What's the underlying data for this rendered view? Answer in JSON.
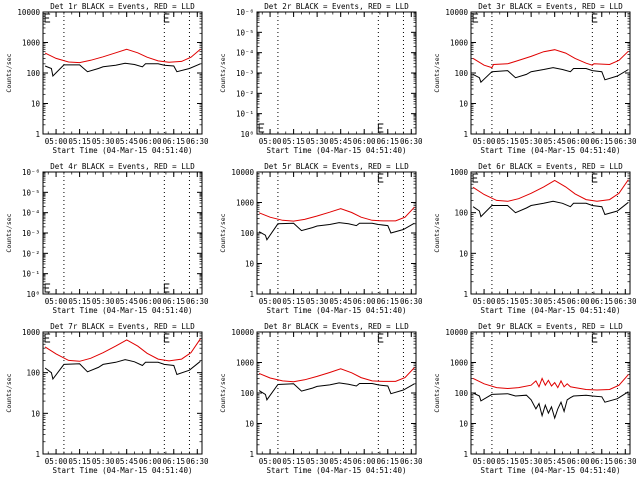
{
  "colors": {
    "events": "#000000",
    "lld": "#e00000",
    "axes": "#000000",
    "background": "#ffffff"
  },
  "chart_data": [
    {
      "type": "line",
      "title": "Det 1r BLACK = Events, RED = LLD",
      "xlabel": "Start Time (04-Mar-15 04:51:40)",
      "ylabel": "Counts/sec",
      "yscale": "log",
      "ylim": [
        1,
        10000
      ],
      "x_ticks": [
        "05:00",
        "05:15",
        "05:30",
        "05:45",
        "06:00",
        "06:15",
        "06:30"
      ],
      "y_ticks": [
        "1",
        "10",
        "100",
        "1000",
        "10000"
      ],
      "markers": [
        "05:05",
        "06:09",
        "06:25"
      ],
      "flags": [
        {
          "x": "04:53",
          "y": 11000
        },
        {
          "x": "06:09",
          "y": 11000
        }
      ],
      "series": [
        {
          "name": "Events",
          "x": [
            "04:53",
            "04:57",
            "04:58",
            "05:05",
            "05:15",
            "05:20",
            "05:27",
            "05:30",
            "05:38",
            "05:44",
            "05:50",
            "05:55",
            "05:57",
            "06:05",
            "06:09",
            "06:15",
            "06:17",
            "06:25",
            "06:32"
          ],
          "y": [
            170,
            140,
            80,
            185,
            185,
            110,
            140,
            160,
            180,
            210,
            190,
            160,
            200,
            200,
            180,
            170,
            110,
            140,
            200
          ]
        },
        {
          "name": "LLD",
          "x": [
            "04:53",
            "05:00",
            "05:08",
            "05:15",
            "05:22",
            "05:30",
            "05:38",
            "05:45",
            "05:52",
            "05:58",
            "06:05",
            "06:12",
            "06:20",
            "06:26",
            "06:32"
          ],
          "y": [
            450,
            300,
            230,
            220,
            260,
            340,
            460,
            600,
            460,
            330,
            250,
            225,
            240,
            330,
            600
          ]
        }
      ]
    },
    {
      "type": "line",
      "title": "Det 2r BLACK = Events, RED = LLD",
      "xlabel": "Start Time (04-Mar-15 04:51:40)",
      "ylabel": "Counts/sec",
      "yscale": "log",
      "ylim": [
        1,
        1000000
      ],
      "x_ticks": [
        "05:00",
        "05:15",
        "05:30",
        "05:45",
        "06:00",
        "06:15",
        "06:30"
      ],
      "y_ticks": [
        "10⁰",
        "10⁻¹",
        "10⁻²",
        "10⁻³",
        "10⁻⁴",
        "10⁻⁵",
        "10⁻⁶"
      ],
      "markers": [
        "05:05",
        "06:09",
        "06:25"
      ],
      "flags": [
        {
          "x": "04:53",
          "y": 3
        },
        {
          "x": "06:09",
          "y": 3
        }
      ],
      "series": []
    },
    {
      "type": "line",
      "title": "Det 3r BLACK = Events, RED = LLD",
      "xlabel": "Start Time (04-Mar-15 04:51:40)",
      "ylabel": "Counts/sec",
      "yscale": "log",
      "ylim": [
        1,
        10000
      ],
      "x_ticks": [
        "05:00",
        "05:15",
        "05:30",
        "05:45",
        "06:00",
        "06:15",
        "06:30"
      ],
      "y_ticks": [
        "1",
        "10",
        "100",
        "1000",
        "10000"
      ],
      "markers": [
        "05:05",
        "06:09",
        "06:25"
      ],
      "flags": [
        {
          "x": "04:53",
          "y": 11000
        },
        {
          "x": "06:09",
          "y": 11000
        }
      ],
      "series": [
        {
          "name": "Events",
          "x": [
            "04:53",
            "04:57",
            "04:58",
            "05:05",
            "05:15",
            "05:20",
            "05:27",
            "05:30",
            "05:38",
            "05:44",
            "05:50",
            "05:55",
            "05:57",
            "06:05",
            "06:09",
            "06:15",
            "06:17",
            "06:25",
            "06:32"
          ],
          "y": [
            90,
            70,
            50,
            110,
            120,
            70,
            90,
            110,
            130,
            150,
            130,
            110,
            140,
            140,
            120,
            110,
            60,
            80,
            130
          ]
        },
        {
          "name": "LLD",
          "x": [
            "04:53",
            "05:00",
            "05:05",
            "05:06",
            "05:15",
            "05:20",
            "05:30",
            "05:38",
            "05:45",
            "05:52",
            "05:58",
            "06:05",
            "06:09",
            "06:10",
            "06:20",
            "06:26",
            "06:32"
          ],
          "y": [
            300,
            180,
            150,
            190,
            200,
            240,
            350,
            500,
            580,
            450,
            300,
            210,
            180,
            200,
            190,
            260,
            520
          ]
        }
      ]
    },
    {
      "type": "line",
      "title": "Det 4r BLACK = Events, RED = LLD",
      "xlabel": "Start Time (04-Mar-15 04:51:40)",
      "ylabel": "Counts/sec",
      "yscale": "log",
      "ylim": [
        1,
        1000000
      ],
      "x_ticks": [
        "05:00",
        "05:15",
        "05:30",
        "05:45",
        "06:00",
        "06:15",
        "06:30"
      ],
      "y_ticks": [
        "10⁰",
        "10⁻¹",
        "10⁻²",
        "10⁻³",
        "10⁻⁴",
        "10⁻⁵",
        "10⁻⁶"
      ],
      "markers": [
        "05:05",
        "06:09",
        "06:25"
      ],
      "flags": [
        {
          "x": "04:53",
          "y": 3
        },
        {
          "x": "06:09",
          "y": 3
        }
      ],
      "series": []
    },
    {
      "type": "line",
      "title": "Det 5r BLACK = Events, RED = LLD",
      "xlabel": "Start Time (04-Mar-15 04:51:40)",
      "ylabel": "Counts/sec",
      "yscale": "log",
      "ylim": [
        1,
        10000
      ],
      "x_ticks": [
        "05:00",
        "05:15",
        "05:30",
        "05:45",
        "06:00",
        "06:15",
        "06:30"
      ],
      "y_ticks": [
        "1",
        "10",
        "100",
        "1000",
        "10000"
      ],
      "markers": [
        "05:05",
        "06:09",
        "06:25"
      ],
      "flags": [
        {
          "x": "06:09",
          "y": 11000
        }
      ],
      "series": [
        {
          "name": "Events",
          "x": [
            "04:53",
            "04:57",
            "04:58",
            "05:05",
            "05:15",
            "05:20",
            "05:27",
            "05:30",
            "05:38",
            "05:44",
            "05:50",
            "05:55",
            "05:57",
            "06:05",
            "06:09",
            "06:15",
            "06:17",
            "06:25",
            "06:32"
          ],
          "y": [
            110,
            85,
            60,
            200,
            210,
            120,
            150,
            170,
            190,
            220,
            200,
            175,
            210,
            210,
            190,
            175,
            100,
            130,
            210
          ]
        },
        {
          "name": "LLD",
          "x": [
            "04:53",
            "05:00",
            "05:08",
            "05:15",
            "05:22",
            "05:30",
            "05:38",
            "05:45",
            "05:52",
            "05:58",
            "06:05",
            "06:12",
            "06:20",
            "06:26",
            "06:32"
          ],
          "y": [
            460,
            330,
            260,
            245,
            280,
            360,
            480,
            630,
            470,
            330,
            260,
            250,
            250,
            330,
            700
          ]
        }
      ]
    },
    {
      "type": "line",
      "title": "Det 6r BLACK = Events, RED = LLD",
      "xlabel": "Start Time (04-Mar-15 04:51:40)",
      "ylabel": "Counts/sec",
      "yscale": "log",
      "ylim": [
        1,
        1000
      ],
      "x_ticks": [
        "05:00",
        "05:15",
        "05:30",
        "05:45",
        "06:00",
        "06:15",
        "06:30"
      ],
      "y_ticks": [
        "1",
        "10",
        "100",
        "1000"
      ],
      "markers": [
        "05:05",
        "06:09",
        "06:25"
      ],
      "flags": [
        {
          "x": "04:53",
          "y": 1100
        },
        {
          "x": "06:09",
          "y": 1100
        }
      ],
      "series": [
        {
          "name": "Events",
          "x": [
            "04:53",
            "04:57",
            "04:58",
            "05:05",
            "05:15",
            "05:20",
            "05:27",
            "05:30",
            "05:38",
            "05:44",
            "05:50",
            "05:55",
            "05:57",
            "06:05",
            "06:09",
            "06:15",
            "06:17",
            "06:25",
            "06:32"
          ],
          "y": [
            140,
            110,
            80,
            150,
            150,
            100,
            130,
            150,
            170,
            190,
            170,
            140,
            170,
            170,
            150,
            140,
            90,
            110,
            180
          ]
        },
        {
          "name": "LLD",
          "x": [
            "04:53",
            "05:00",
            "05:08",
            "05:15",
            "05:22",
            "05:30",
            "05:38",
            "05:45",
            "05:52",
            "05:58",
            "06:05",
            "06:12",
            "06:20",
            "06:26",
            "06:32"
          ],
          "y": [
            420,
            280,
            200,
            190,
            220,
            300,
            430,
            620,
            430,
            290,
            210,
            190,
            210,
            300,
            650
          ]
        }
      ]
    },
    {
      "type": "line",
      "title": "Det 7r BLACK = Events, RED = LLD",
      "xlabel": "Start Time (04-Mar-15 04:51:40)",
      "ylabel": "Counts/sec",
      "yscale": "log",
      "ylim": [
        1,
        1000
      ],
      "x_ticks": [
        "05:00",
        "05:15",
        "05:30",
        "05:45",
        "06:00",
        "06:15",
        "06:30"
      ],
      "y_ticks": [
        "1",
        "10",
        "100",
        "1000"
      ],
      "markers": [
        "05:05",
        "06:09",
        "06:25"
      ],
      "flags": [
        {
          "x": "04:53",
          "y": 1100
        },
        {
          "x": "06:09",
          "y": 1100
        }
      ],
      "series": [
        {
          "name": "Events",
          "x": [
            "04:53",
            "04:57",
            "04:58",
            "05:05",
            "05:15",
            "05:20",
            "05:27",
            "05:30",
            "05:38",
            "05:44",
            "05:50",
            "05:55",
            "05:57",
            "06:05",
            "06:09",
            "06:15",
            "06:17",
            "06:25",
            "06:32"
          ],
          "y": [
            130,
            100,
            70,
            160,
            165,
            105,
            135,
            160,
            180,
            210,
            185,
            150,
            180,
            180,
            160,
            150,
            90,
            115,
            190
          ]
        },
        {
          "name": "LLD",
          "x": [
            "04:53",
            "05:00",
            "05:08",
            "05:15",
            "05:22",
            "05:30",
            "05:38",
            "05:45",
            "05:52",
            "05:58",
            "06:05",
            "06:12",
            "06:20",
            "06:26",
            "06:32"
          ],
          "y": [
            430,
            290,
            200,
            190,
            225,
            310,
            450,
            640,
            450,
            300,
            215,
            195,
            215,
            310,
            680
          ]
        }
      ]
    },
    {
      "type": "line",
      "title": "Det 8r BLACK = Events, RED = LLD",
      "xlabel": "Start Time (04-Mar-15 04:51:40)",
      "ylabel": "Counts/sec",
      "yscale": "log",
      "ylim": [
        1,
        10000
      ],
      "x_ticks": [
        "05:00",
        "05:15",
        "05:30",
        "05:45",
        "06:00",
        "06:15",
        "06:30"
      ],
      "y_ticks": [
        "1",
        "10",
        "100",
        "1000",
        "10000"
      ],
      "markers": [
        "05:05",
        "06:09",
        "06:25"
      ],
      "flags": [
        {
          "x": "06:09",
          "y": 11000
        }
      ],
      "series": [
        {
          "name": "Events",
          "x": [
            "04:53",
            "04:57",
            "04:58",
            "05:05",
            "05:15",
            "05:20",
            "05:27",
            "05:30",
            "05:38",
            "05:44",
            "05:50",
            "05:55",
            "05:57",
            "06:05",
            "06:09",
            "06:15",
            "06:17",
            "06:25",
            "06:32"
          ],
          "y": [
            120,
            90,
            60,
            190,
            200,
            115,
            145,
            165,
            185,
            215,
            195,
            170,
            205,
            205,
            185,
            170,
            95,
            125,
            200
          ]
        },
        {
          "name": "LLD",
          "x": [
            "04:53",
            "05:00",
            "05:08",
            "05:15",
            "05:22",
            "05:30",
            "05:38",
            "05:45",
            "05:52",
            "05:58",
            "06:05",
            "06:12",
            "06:20",
            "06:26",
            "06:32"
          ],
          "y": [
            440,
            310,
            250,
            235,
            270,
            350,
            470,
            620,
            460,
            320,
            250,
            240,
            240,
            320,
            680
          ]
        }
      ]
    },
    {
      "type": "line",
      "title": "Det 9r BLACK = Events, RED = LLD",
      "xlabel": "Start Time (04-Mar-15 04:51:40)",
      "ylabel": "Counts/sec",
      "yscale": "log",
      "ylim": [
        1,
        10000
      ],
      "x_ticks": [
        "05:00",
        "05:15",
        "05:30",
        "05:45",
        "06:00",
        "06:15",
        "06:30"
      ],
      "y_ticks": [
        "1",
        "10",
        "100",
        "1000",
        "10000"
      ],
      "markers": [
        "05:05",
        "06:09",
        "06:25"
      ],
      "flags": [
        {
          "x": "06:09",
          "y": 11000
        }
      ],
      "series": [
        {
          "name": "Events",
          "x": [
            "04:53",
            "04:57",
            "04:58",
            "05:05",
            "05:15",
            "05:20",
            "05:27",
            "05:30",
            "05:33",
            "05:35",
            "05:37",
            "05:39",
            "05:41",
            "05:43",
            "05:45",
            "05:47",
            "05:49",
            "05:51",
            "05:53",
            "05:55",
            "05:57",
            "06:05",
            "06:09",
            "06:15",
            "06:17",
            "06:25",
            "06:32"
          ],
          "y": [
            100,
            80,
            55,
            90,
            95,
            80,
            85,
            60,
            30,
            45,
            18,
            40,
            22,
            35,
            15,
            30,
            50,
            25,
            60,
            70,
            80,
            85,
            80,
            75,
            50,
            65,
            110
          ]
        },
        {
          "name": "LLD",
          "x": [
            "04:53",
            "05:00",
            "05:08",
            "05:15",
            "05:22",
            "05:30",
            "05:33",
            "05:35",
            "05:37",
            "05:39",
            "05:41",
            "05:43",
            "05:45",
            "05:47",
            "05:49",
            "05:51",
            "05:53",
            "05:55",
            "05:58",
            "06:05",
            "06:12",
            "06:20",
            "06:26",
            "06:32"
          ],
          "y": [
            300,
            200,
            150,
            140,
            150,
            180,
            250,
            160,
            300,
            180,
            260,
            170,
            220,
            150,
            250,
            160,
            200,
            160,
            150,
            130,
            125,
            130,
            180,
            400
          ]
        }
      ]
    }
  ]
}
